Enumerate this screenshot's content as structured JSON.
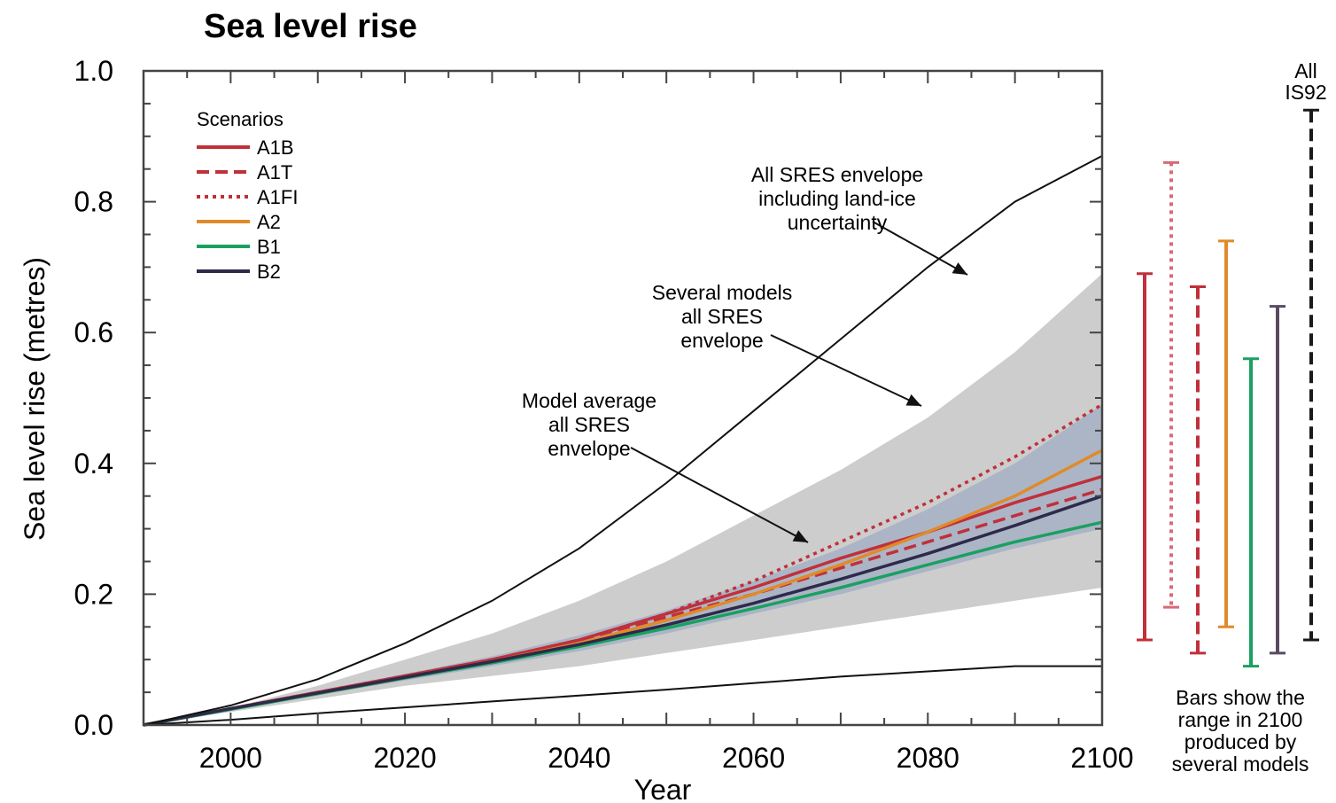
{
  "chart_data": {
    "type": "line",
    "title": "Sea level rise",
    "xlabel": "Year",
    "ylabel": "Sea level rise (metres)",
    "xlim": [
      1990,
      2100
    ],
    "ylim": [
      0,
      1.0
    ],
    "xticks": [
      2000,
      2020,
      2040,
      2060,
      2080,
      2100
    ],
    "yticks": [
      "0.0",
      "0.2",
      "0.4",
      "0.6",
      "0.8",
      "1.0"
    ],
    "grid": false,
    "legend": {
      "title": "Scenarios",
      "position": "top-left"
    },
    "x": [
      1990,
      2000,
      2010,
      2020,
      2030,
      2040,
      2050,
      2060,
      2070,
      2080,
      2090,
      2100
    ],
    "series": [
      {
        "name": "A1B",
        "color": "#c0303a",
        "dash": "solid",
        "values": [
          0.0,
          0.025,
          0.05,
          0.075,
          0.1,
          0.13,
          0.17,
          0.21,
          0.255,
          0.295,
          0.34,
          0.38
        ]
      },
      {
        "name": "A1T",
        "color": "#c0303a",
        "dash": "dashed",
        "values": [
          0.0,
          0.025,
          0.05,
          0.074,
          0.1,
          0.13,
          0.165,
          0.2,
          0.24,
          0.28,
          0.32,
          0.36
        ]
      },
      {
        "name": "A1FI",
        "color": "#c0303a",
        "dash": "dotted",
        "values": [
          0.0,
          0.025,
          0.05,
          0.075,
          0.1,
          0.13,
          0.17,
          0.22,
          0.28,
          0.34,
          0.41,
          0.49
        ]
      },
      {
        "name": "A2",
        "color": "#e08a2a",
        "dash": "solid",
        "values": [
          0.0,
          0.025,
          0.048,
          0.072,
          0.097,
          0.125,
          0.16,
          0.2,
          0.245,
          0.295,
          0.35,
          0.42
        ]
      },
      {
        "name": "B1",
        "color": "#1aa060",
        "dash": "solid",
        "values": [
          0.0,
          0.024,
          0.048,
          0.072,
          0.095,
          0.12,
          0.148,
          0.178,
          0.21,
          0.245,
          0.28,
          0.31
        ]
      },
      {
        "name": "B2",
        "color": "#2e2a4a",
        "dash": "solid",
        "values": [
          0.0,
          0.025,
          0.049,
          0.073,
          0.097,
          0.123,
          0.153,
          0.186,
          0.223,
          0.262,
          0.305,
          0.35
        ]
      }
    ],
    "envelopes": [
      {
        "label": "Several models all SRES envelope",
        "color": "#c8c8c8",
        "upper": [
          0.0,
          0.026,
          0.06,
          0.1,
          0.14,
          0.19,
          0.25,
          0.32,
          0.39,
          0.47,
          0.57,
          0.69
        ],
        "lower": [
          0.0,
          0.02,
          0.04,
          0.06,
          0.075,
          0.09,
          0.11,
          0.13,
          0.15,
          0.17,
          0.19,
          0.21
        ]
      },
      {
        "label": "Model average all SRES envelope",
        "color": "#a6b0c4",
        "upper": [
          0.0,
          0.026,
          0.052,
          0.078,
          0.105,
          0.137,
          0.175,
          0.22,
          0.27,
          0.33,
          0.4,
          0.49
        ],
        "lower": [
          0.0,
          0.022,
          0.046,
          0.068,
          0.09,
          0.113,
          0.14,
          0.17,
          0.2,
          0.235,
          0.27,
          0.3
        ]
      }
    ],
    "bounds": [
      {
        "label": "All SRES envelope including land-ice uncertainty (upper)",
        "values": [
          0.0,
          0.03,
          0.07,
          0.125,
          0.19,
          0.27,
          0.37,
          0.48,
          0.59,
          0.7,
          0.8,
          0.87
        ]
      },
      {
        "label": "All SRES envelope including land-ice uncertainty (lower)",
        "values": [
          0.0,
          0.008,
          0.018,
          0.027,
          0.036,
          0.045,
          0.054,
          0.064,
          0.074,
          0.082,
          0.09,
          0.09
        ]
      }
    ],
    "annotations": [
      {
        "lines": [
          "All SRES envelope",
          "including land-ice",
          "uncertainty"
        ]
      },
      {
        "lines": [
          "Several models",
          "all SRES",
          "envelope"
        ]
      },
      {
        "lines": [
          "Model average",
          "all SRES",
          "envelope"
        ]
      }
    ],
    "range_bars_2100": [
      {
        "scenario": "A1B",
        "color": "#c0303a",
        "dash": "solid",
        "min": 0.13,
        "max": 0.69
      },
      {
        "scenario": "A1FI",
        "color": "#d86a78",
        "dash": "dotted",
        "min": 0.18,
        "max": 0.86
      },
      {
        "scenario": "A1T",
        "color": "#c0303a",
        "dash": "dashed",
        "min": 0.11,
        "max": 0.67
      },
      {
        "scenario": "A2",
        "color": "#e08a2a",
        "dash": "solid",
        "min": 0.15,
        "max": 0.74
      },
      {
        "scenario": "B1",
        "color": "#1aa060",
        "dash": "solid",
        "min": 0.09,
        "max": 0.56
      },
      {
        "scenario": "B2",
        "color": "#5a4a60",
        "dash": "solid",
        "min": 0.11,
        "max": 0.64
      },
      {
        "scenario": "All IS92",
        "color": "#1a1a1a",
        "dash": "dashed",
        "min": 0.13,
        "max": 0.94
      }
    ],
    "is92_label": [
      "All",
      "IS92"
    ],
    "bars_note": [
      "Bars show the",
      "range in 2100",
      "produced by",
      "several models"
    ]
  }
}
